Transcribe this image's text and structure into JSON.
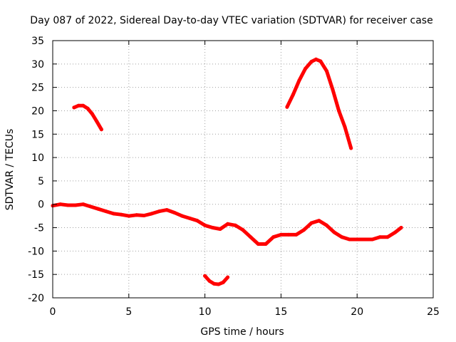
{
  "chart_data": {
    "type": "line",
    "title": "Day 087 of 2022, Sidereal Day-to-day VTEC variation (SDTVAR) for receiver case",
    "xlabel": "GPS time / hours",
    "ylabel": "SDTVAR / TECUs",
    "xlim": [
      0,
      25
    ],
    "ylim": [
      -20,
      35
    ],
    "xticks": [
      0,
      5,
      10,
      15,
      20,
      25
    ],
    "yticks": [
      -20,
      -15,
      -10,
      -5,
      0,
      5,
      10,
      15,
      20,
      25,
      30,
      35
    ],
    "grid": true,
    "line_color": "#ff0000",
    "series": [
      {
        "name": "segment-1",
        "x": [
          0.0,
          0.5,
          1.0,
          1.5,
          2.0,
          2.5,
          3.0,
          3.5,
          4.0,
          4.5,
          5.0,
          5.5,
          6.0,
          6.5,
          7.0,
          7.5,
          8.0,
          8.5,
          9.0,
          9.5,
          10.0,
          10.5,
          11.0,
          11.5,
          12.0,
          12.5,
          13.0,
          13.5,
          14.0,
          14.5,
          15.0,
          15.5,
          16.0,
          16.5,
          17.0,
          17.5,
          18.0,
          18.5,
          19.0,
          19.5,
          20.0,
          20.5,
          21.0,
          21.5,
          22.0,
          22.5,
          22.9
        ],
        "y": [
          -0.3,
          0.0,
          -0.2,
          -0.2,
          0.0,
          -0.5,
          -1.0,
          -1.5,
          -2.0,
          -2.2,
          -2.5,
          -2.3,
          -2.4,
          -2.0,
          -1.5,
          -1.2,
          -1.8,
          -2.5,
          -3.0,
          -3.5,
          -4.5,
          -5.0,
          -5.3,
          -4.2,
          -4.5,
          -5.5,
          -7.0,
          -8.5,
          -8.5,
          -7.0,
          -6.5,
          -6.5,
          -6.5,
          -5.5,
          -4.0,
          -3.5,
          -4.5,
          -6.0,
          -7.0,
          -7.5,
          -7.5,
          -7.5,
          -7.5,
          -7.0,
          -7.0,
          -6.0,
          -5.0
        ]
      },
      {
        "name": "segment-2",
        "x": [
          1.4,
          1.7,
          2.0,
          2.3,
          2.6,
          2.9,
          3.2
        ],
        "y": [
          20.7,
          21.1,
          21.1,
          20.5,
          19.3,
          17.7,
          16.0
        ]
      },
      {
        "name": "segment-3",
        "x": [
          10.0,
          10.3,
          10.6,
          10.9,
          11.2,
          11.5
        ],
        "y": [
          -15.3,
          -16.4,
          -17.0,
          -17.1,
          -16.7,
          -15.6
        ]
      },
      {
        "name": "segment-4",
        "x": [
          15.4,
          15.8,
          16.2,
          16.6,
          17.0,
          17.3,
          17.6,
          18.0,
          18.4,
          18.8,
          19.2,
          19.6
        ],
        "y": [
          20.8,
          23.5,
          26.5,
          29.0,
          30.5,
          31.0,
          30.6,
          28.5,
          24.5,
          20.0,
          16.5,
          12.0
        ]
      }
    ]
  }
}
